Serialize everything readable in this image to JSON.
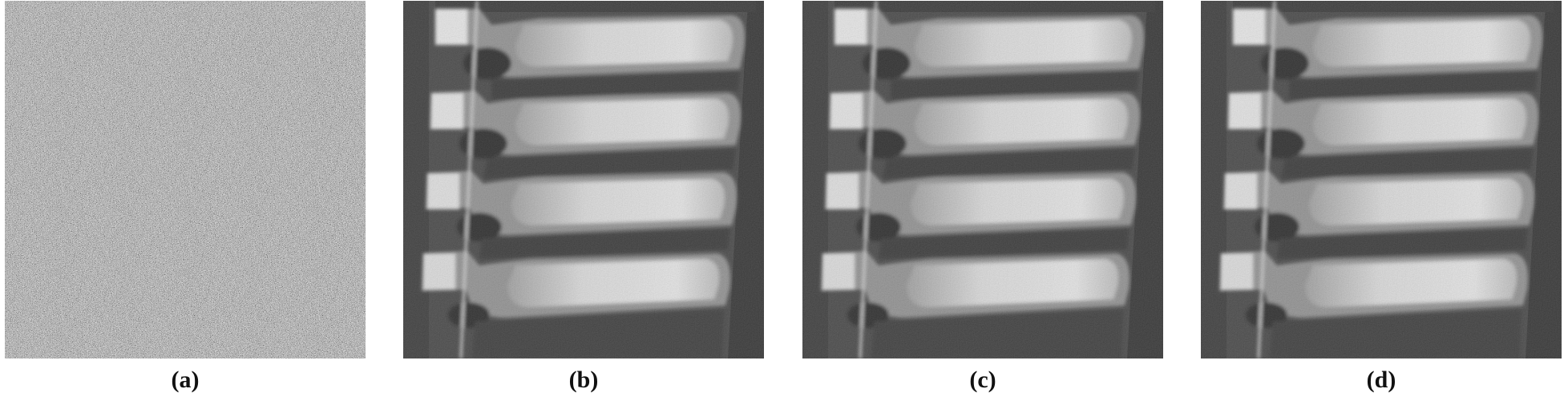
{
  "figure": {
    "panels": [
      {
        "id": "a",
        "caption": "(a)",
        "content": "noise"
      },
      {
        "id": "b",
        "caption": "(b)",
        "content": "microscopy"
      },
      {
        "id": "c",
        "caption": "(c)",
        "content": "microscopy"
      },
      {
        "id": "d",
        "caption": "(d)",
        "content": "microscopy"
      }
    ]
  },
  "colors": {
    "background": "#ffffff",
    "noise_base": "#6e6e6e",
    "image_dark": "#2c2c2c",
    "image_mid": "#5a5a5a",
    "image_bright": "#dcdcdc"
  }
}
